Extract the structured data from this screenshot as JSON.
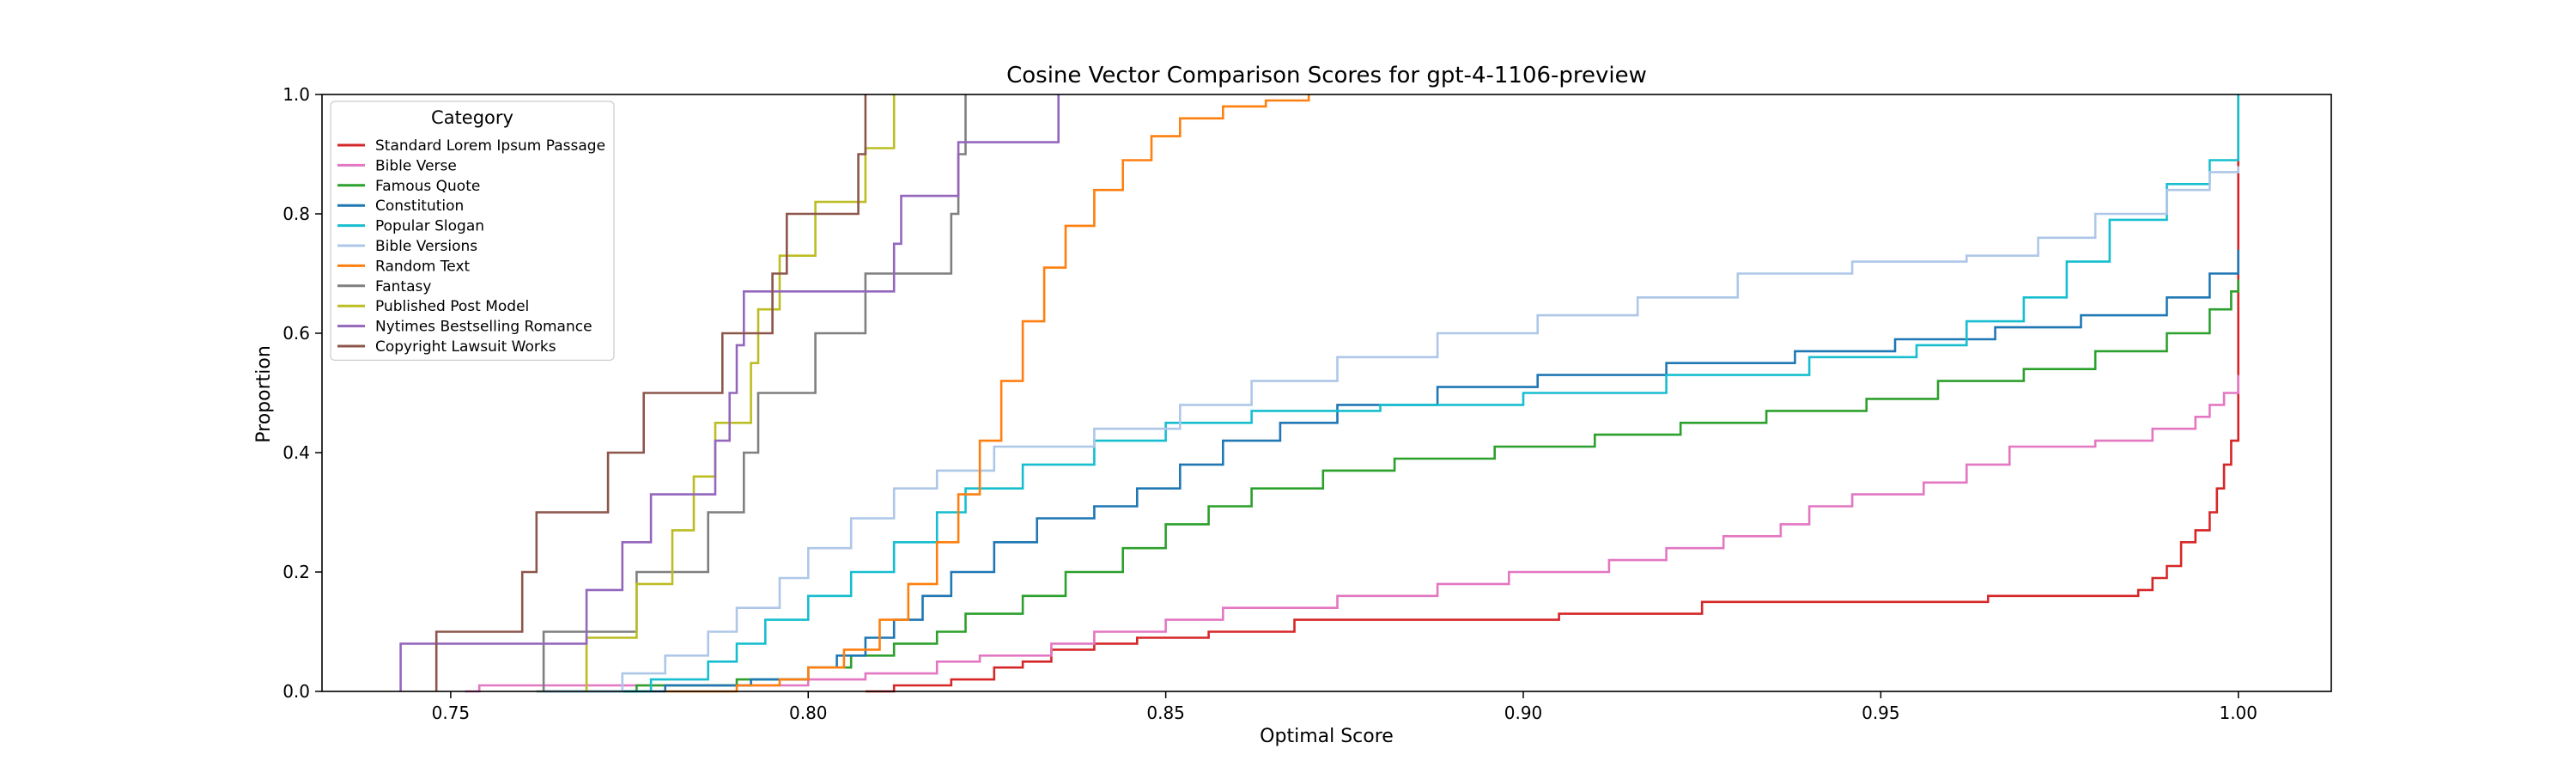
{
  "chart_data": {
    "type": "line",
    "step": true,
    "title": "Cosine Vector Comparison Scores for gpt-4-1106-preview",
    "xlabel": "Optimal Score",
    "ylabel": "Proportion",
    "xlim": [
      0.732,
      1.013
    ],
    "ylim": [
      0.0,
      1.0
    ],
    "xticks": [
      0.75,
      0.8,
      0.85,
      0.9,
      0.95,
      1.0
    ],
    "xtick_labels": [
      "0.75",
      "0.80",
      "0.85",
      "0.90",
      "0.95",
      "1.00"
    ],
    "yticks": [
      0.0,
      0.2,
      0.4,
      0.6,
      0.8,
      1.0
    ],
    "ytick_labels": [
      "0.0",
      "0.2",
      "0.4",
      "0.6",
      "0.8",
      "1.0"
    ],
    "grid": false,
    "legend": {
      "title": "Category",
      "position": "upper-left"
    },
    "series": [
      {
        "name": "Standard Lorem Ipsum Passage",
        "color": "#d62728",
        "points": [
          [
            0.808,
            0.0
          ],
          [
            0.812,
            0.01
          ],
          [
            0.82,
            0.02
          ],
          [
            0.826,
            0.04
          ],
          [
            0.83,
            0.05
          ],
          [
            0.834,
            0.07
          ],
          [
            0.84,
            0.08
          ],
          [
            0.846,
            0.09
          ],
          [
            0.856,
            0.1
          ],
          [
            0.868,
            0.12
          ],
          [
            0.905,
            0.13
          ],
          [
            0.925,
            0.15
          ],
          [
            0.965,
            0.16
          ],
          [
            0.986,
            0.17
          ],
          [
            0.988,
            0.19
          ],
          [
            0.99,
            0.21
          ],
          [
            0.992,
            0.25
          ],
          [
            0.994,
            0.27
          ],
          [
            0.996,
            0.3
          ],
          [
            0.997,
            0.34
          ],
          [
            0.998,
            0.38
          ],
          [
            0.999,
            0.42
          ],
          [
            1.0,
            0.46
          ],
          [
            1.0,
            1.0
          ]
        ]
      },
      {
        "name": "Bible Verse",
        "color": "#e377c2",
        "points": [
          [
            0.752,
            0.0
          ],
          [
            0.754,
            0.01
          ],
          [
            0.8,
            0.02
          ],
          [
            0.808,
            0.03
          ],
          [
            0.818,
            0.05
          ],
          [
            0.824,
            0.06
          ],
          [
            0.834,
            0.08
          ],
          [
            0.84,
            0.1
          ],
          [
            0.85,
            0.12
          ],
          [
            0.858,
            0.14
          ],
          [
            0.874,
            0.16
          ],
          [
            0.888,
            0.18
          ],
          [
            0.898,
            0.2
          ],
          [
            0.912,
            0.22
          ],
          [
            0.92,
            0.24
          ],
          [
            0.928,
            0.26
          ],
          [
            0.936,
            0.28
          ],
          [
            0.94,
            0.31
          ],
          [
            0.946,
            0.33
          ],
          [
            0.956,
            0.35
          ],
          [
            0.962,
            0.38
          ],
          [
            0.968,
            0.41
          ],
          [
            0.98,
            0.42
          ],
          [
            0.988,
            0.44
          ],
          [
            0.994,
            0.46
          ],
          [
            0.996,
            0.48
          ],
          [
            0.998,
            0.5
          ],
          [
            1.0,
            0.53
          ]
        ]
      },
      {
        "name": "Famous Quote",
        "color": "#2ca02c",
        "points": [
          [
            0.762,
            0.0
          ],
          [
            0.776,
            0.01
          ],
          [
            0.79,
            0.02
          ],
          [
            0.8,
            0.04
          ],
          [
            0.806,
            0.06
          ],
          [
            0.812,
            0.08
          ],
          [
            0.818,
            0.1
          ],
          [
            0.822,
            0.13
          ],
          [
            0.83,
            0.16
          ],
          [
            0.836,
            0.2
          ],
          [
            0.844,
            0.24
          ],
          [
            0.85,
            0.28
          ],
          [
            0.856,
            0.31
          ],
          [
            0.862,
            0.34
          ],
          [
            0.872,
            0.37
          ],
          [
            0.882,
            0.39
          ],
          [
            0.896,
            0.41
          ],
          [
            0.91,
            0.43
          ],
          [
            0.922,
            0.45
          ],
          [
            0.934,
            0.47
          ],
          [
            0.948,
            0.49
          ],
          [
            0.958,
            0.52
          ],
          [
            0.97,
            0.54
          ],
          [
            0.98,
            0.57
          ],
          [
            0.99,
            0.6
          ],
          [
            0.996,
            0.64
          ],
          [
            0.999,
            0.67
          ],
          [
            1.0,
            0.69
          ]
        ]
      },
      {
        "name": "Constitution",
        "color": "#1f77b4",
        "points": [
          [
            0.763,
            0.0
          ],
          [
            0.78,
            0.01
          ],
          [
            0.792,
            0.02
          ],
          [
            0.8,
            0.04
          ],
          [
            0.804,
            0.06
          ],
          [
            0.808,
            0.09
          ],
          [
            0.812,
            0.12
          ],
          [
            0.816,
            0.16
          ],
          [
            0.82,
            0.2
          ],
          [
            0.826,
            0.25
          ],
          [
            0.832,
            0.29
          ],
          [
            0.84,
            0.31
          ],
          [
            0.846,
            0.34
          ],
          [
            0.852,
            0.38
          ],
          [
            0.858,
            0.42
          ],
          [
            0.866,
            0.45
          ],
          [
            0.874,
            0.48
          ],
          [
            0.888,
            0.51
          ],
          [
            0.902,
            0.53
          ],
          [
            0.92,
            0.55
          ],
          [
            0.938,
            0.57
          ],
          [
            0.952,
            0.59
          ],
          [
            0.966,
            0.61
          ],
          [
            0.978,
            0.63
          ],
          [
            0.99,
            0.66
          ],
          [
            0.996,
            0.7
          ],
          [
            1.0,
            0.74
          ]
        ]
      },
      {
        "name": "Popular Slogan",
        "color": "#17becf",
        "points": [
          [
            0.765,
            0.0
          ],
          [
            0.778,
            0.02
          ],
          [
            0.786,
            0.05
          ],
          [
            0.79,
            0.08
          ],
          [
            0.794,
            0.12
          ],
          [
            0.8,
            0.16
          ],
          [
            0.806,
            0.2
          ],
          [
            0.812,
            0.25
          ],
          [
            0.818,
            0.3
          ],
          [
            0.822,
            0.34
          ],
          [
            0.83,
            0.38
          ],
          [
            0.84,
            0.42
          ],
          [
            0.85,
            0.45
          ],
          [
            0.862,
            0.47
          ],
          [
            0.88,
            0.48
          ],
          [
            0.9,
            0.5
          ],
          [
            0.92,
            0.53
          ],
          [
            0.94,
            0.56
          ],
          [
            0.955,
            0.58
          ],
          [
            0.962,
            0.62
          ],
          [
            0.97,
            0.66
          ],
          [
            0.976,
            0.72
          ],
          [
            0.982,
            0.79
          ],
          [
            0.99,
            0.85
          ],
          [
            0.996,
            0.89
          ],
          [
            1.0,
            0.92
          ],
          [
            1.0,
            1.0
          ]
        ]
      },
      {
        "name": "Bible Versions",
        "color": "#aec7e8",
        "points": [
          [
            0.762,
            0.0
          ],
          [
            0.774,
            0.03
          ],
          [
            0.78,
            0.06
          ],
          [
            0.786,
            0.1
          ],
          [
            0.79,
            0.14
          ],
          [
            0.796,
            0.19
          ],
          [
            0.8,
            0.24
          ],
          [
            0.806,
            0.29
          ],
          [
            0.812,
            0.34
          ],
          [
            0.818,
            0.37
          ],
          [
            0.826,
            0.41
          ],
          [
            0.84,
            0.44
          ],
          [
            0.852,
            0.48
          ],
          [
            0.862,
            0.52
          ],
          [
            0.874,
            0.56
          ],
          [
            0.888,
            0.6
          ],
          [
            0.902,
            0.63
          ],
          [
            0.916,
            0.66
          ],
          [
            0.93,
            0.7
          ],
          [
            0.946,
            0.72
          ],
          [
            0.962,
            0.73
          ],
          [
            0.972,
            0.76
          ],
          [
            0.98,
            0.8
          ],
          [
            0.99,
            0.84
          ],
          [
            0.996,
            0.87
          ],
          [
            1.0,
            0.88
          ]
        ]
      },
      {
        "name": "Random Text",
        "color": "#ff7f0e",
        "points": [
          [
            0.78,
            0.0
          ],
          [
            0.79,
            0.01
          ],
          [
            0.796,
            0.02
          ],
          [
            0.8,
            0.04
          ],
          [
            0.805,
            0.07
          ],
          [
            0.81,
            0.12
          ],
          [
            0.814,
            0.18
          ],
          [
            0.818,
            0.25
          ],
          [
            0.821,
            0.33
          ],
          [
            0.824,
            0.42
          ],
          [
            0.827,
            0.52
          ],
          [
            0.83,
            0.62
          ],
          [
            0.833,
            0.71
          ],
          [
            0.836,
            0.78
          ],
          [
            0.84,
            0.84
          ],
          [
            0.844,
            0.89
          ],
          [
            0.848,
            0.93
          ],
          [
            0.852,
            0.96
          ],
          [
            0.858,
            0.98
          ],
          [
            0.864,
            0.99
          ],
          [
            0.87,
            1.0
          ]
        ]
      },
      {
        "name": "Fantasy",
        "color": "#7f7f7f",
        "points": [
          [
            0.763,
            0.0
          ],
          [
            0.763,
            0.1
          ],
          [
            0.776,
            0.1
          ],
          [
            0.776,
            0.2
          ],
          [
            0.786,
            0.2
          ],
          [
            0.786,
            0.3
          ],
          [
            0.791,
            0.3
          ],
          [
            0.791,
            0.4
          ],
          [
            0.793,
            0.4
          ],
          [
            0.793,
            0.5
          ],
          [
            0.801,
            0.5
          ],
          [
            0.801,
            0.6
          ],
          [
            0.808,
            0.6
          ],
          [
            0.808,
            0.7
          ],
          [
            0.82,
            0.7
          ],
          [
            0.82,
            0.8
          ],
          [
            0.821,
            0.8
          ],
          [
            0.821,
            0.9
          ],
          [
            0.822,
            0.9
          ],
          [
            0.822,
            1.0
          ]
        ]
      },
      {
        "name": "Published Post Model",
        "color": "#bcbd22",
        "points": [
          [
            0.769,
            0.0
          ],
          [
            0.769,
            0.09
          ],
          [
            0.776,
            0.09
          ],
          [
            0.776,
            0.18
          ],
          [
            0.781,
            0.18
          ],
          [
            0.781,
            0.27
          ],
          [
            0.784,
            0.27
          ],
          [
            0.784,
            0.36
          ],
          [
            0.787,
            0.36
          ],
          [
            0.787,
            0.45
          ],
          [
            0.792,
            0.45
          ],
          [
            0.792,
            0.55
          ],
          [
            0.793,
            0.55
          ],
          [
            0.793,
            0.64
          ],
          [
            0.796,
            0.64
          ],
          [
            0.796,
            0.73
          ],
          [
            0.801,
            0.73
          ],
          [
            0.801,
            0.82
          ],
          [
            0.808,
            0.82
          ],
          [
            0.808,
            0.91
          ],
          [
            0.812,
            0.91
          ],
          [
            0.812,
            1.0
          ]
        ]
      },
      {
        "name": "Nytimes Bestselling Romance",
        "color": "#9467bd",
        "points": [
          [
            0.743,
            0.0
          ],
          [
            0.743,
            0.08
          ],
          [
            0.769,
            0.08
          ],
          [
            0.769,
            0.17
          ],
          [
            0.774,
            0.17
          ],
          [
            0.774,
            0.25
          ],
          [
            0.778,
            0.25
          ],
          [
            0.778,
            0.33
          ],
          [
            0.787,
            0.33
          ],
          [
            0.787,
            0.42
          ],
          [
            0.789,
            0.42
          ],
          [
            0.789,
            0.5
          ],
          [
            0.79,
            0.5
          ],
          [
            0.79,
            0.58
          ],
          [
            0.791,
            0.58
          ],
          [
            0.791,
            0.67
          ],
          [
            0.812,
            0.67
          ],
          [
            0.812,
            0.75
          ],
          [
            0.813,
            0.75
          ],
          [
            0.813,
            0.83
          ],
          [
            0.821,
            0.83
          ],
          [
            0.821,
            0.92
          ],
          [
            0.835,
            0.92
          ],
          [
            0.835,
            1.0
          ]
        ]
      },
      {
        "name": "Copyright Lawsuit Works",
        "color": "#8c564b",
        "points": [
          [
            0.748,
            0.0
          ],
          [
            0.748,
            0.1
          ],
          [
            0.76,
            0.1
          ],
          [
            0.76,
            0.2
          ],
          [
            0.762,
            0.2
          ],
          [
            0.762,
            0.3
          ],
          [
            0.772,
            0.3
          ],
          [
            0.772,
            0.4
          ],
          [
            0.777,
            0.4
          ],
          [
            0.777,
            0.5
          ],
          [
            0.788,
            0.5
          ],
          [
            0.788,
            0.6
          ],
          [
            0.795,
            0.6
          ],
          [
            0.795,
            0.7
          ],
          [
            0.797,
            0.7
          ],
          [
            0.797,
            0.8
          ],
          [
            0.807,
            0.8
          ],
          [
            0.807,
            0.9
          ],
          [
            0.808,
            0.9
          ],
          [
            0.808,
            1.0
          ]
        ]
      }
    ]
  }
}
